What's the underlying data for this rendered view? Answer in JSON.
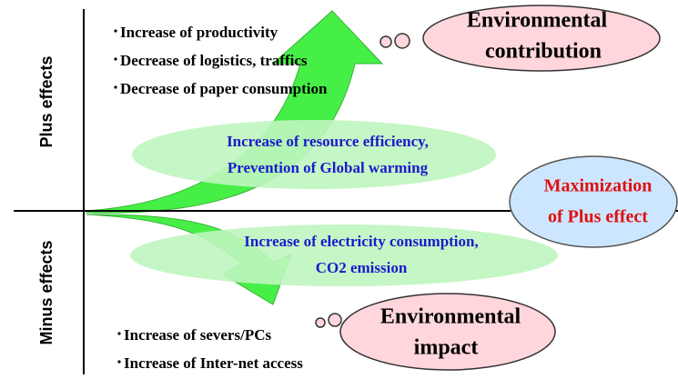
{
  "axis_labels": {
    "plus": "Plus effects",
    "minus": "Minus effects"
  },
  "plus_items": [
    "Increase of productivity",
    "Decrease of logistics, traffics",
    "Decrease of paper consumption"
  ],
  "minus_items": [
    "Increase of severs/PCs",
    "Increase of Inter-net access"
  ],
  "contribution_cloud": [
    "Environmental",
    "contribution"
  ],
  "impact_cloud": [
    "Environmental",
    "impact"
  ],
  "plus_ellipse": [
    "Increase of resource efficiency,",
    "Prevention of Global warming"
  ],
  "minus_ellipse": [
    "Increase of electricity consumption,",
    "CO2 emission"
  ],
  "goal": [
    "Maximization",
    "of Plus effect"
  ]
}
